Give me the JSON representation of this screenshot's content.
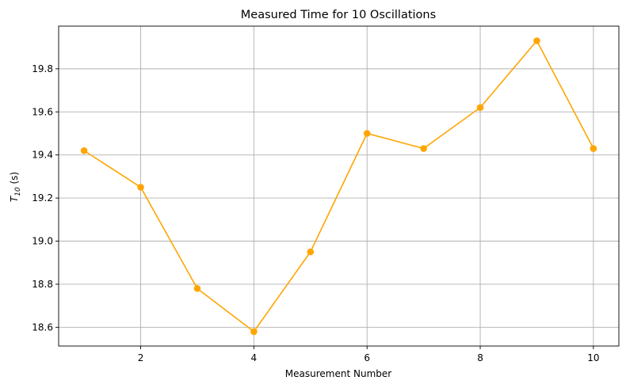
{
  "chart_data": {
    "type": "line",
    "title": "Measured Time for 10 Oscillations",
    "xlabel": "Measurement Number",
    "ylabel_main": "T",
    "ylabel_sub": "10",
    "ylabel_unit": " (s)",
    "x": [
      1,
      2,
      3,
      4,
      5,
      6,
      7,
      8,
      9,
      10
    ],
    "series": [
      {
        "values": [
          19.42,
          19.25,
          18.78,
          18.58,
          18.95,
          19.5,
          19.43,
          19.62,
          19.93,
          19.43
        ],
        "color": "#ffa500",
        "marker": "circle"
      }
    ],
    "xticks": [
      2,
      4,
      6,
      8,
      10
    ],
    "xtick_labels": [
      "2",
      "4",
      "6",
      "8",
      "10"
    ],
    "yticks": [
      18.6,
      18.8,
      19.0,
      19.2,
      19.4,
      19.6,
      19.8
    ],
    "ytick_labels": [
      "18.6",
      "18.8",
      "19.0",
      "19.2",
      "19.4",
      "19.6",
      "19.8"
    ],
    "xlim": [
      0.55,
      10.45
    ],
    "ylim": [
      18.513,
      19.998
    ],
    "grid": true
  }
}
